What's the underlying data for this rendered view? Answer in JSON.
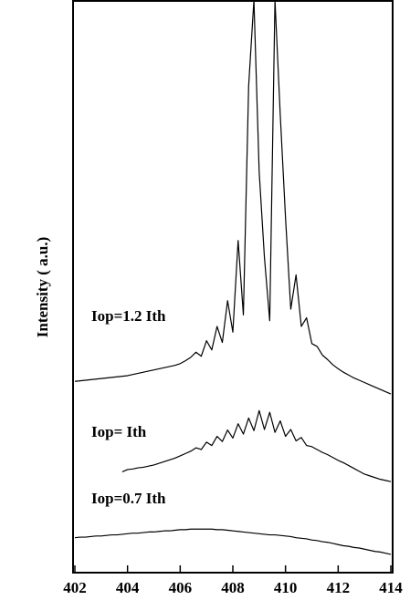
{
  "chart_data": {
    "type": "line",
    "ylabel": "Intensity ( a.u.)",
    "x": [
      402.0,
      402.2,
      402.4,
      402.6,
      402.8,
      403.0,
      403.2,
      403.4,
      403.6,
      403.8,
      404.0,
      404.2,
      404.4,
      404.6,
      404.8,
      405.0,
      405.2,
      405.4,
      405.6,
      405.8,
      406.0,
      406.2,
      406.4,
      406.6,
      406.8,
      407.0,
      407.2,
      407.4,
      407.6,
      407.8,
      408.0,
      408.2,
      408.4,
      408.6,
      408.8,
      409.0,
      409.2,
      409.4,
      409.6,
      409.8,
      410.0,
      410.2,
      410.4,
      410.6,
      410.8,
      411.0,
      411.2,
      411.4,
      411.6,
      411.8,
      412.0,
      412.2,
      412.4,
      412.6,
      412.8,
      413.0,
      413.2,
      413.4,
      413.6,
      413.8,
      414.0
    ],
    "series": [
      {
        "name": "Iop=1.2 Ith",
        "color": "#000000",
        "values": [
          33.4,
          33.5,
          33.6,
          33.7,
          33.8,
          33.9,
          34.0,
          34.1,
          34.2,
          34.3,
          34.4,
          34.6,
          34.8,
          35.0,
          35.2,
          35.4,
          35.6,
          35.8,
          36.0,
          36.2,
          36.5,
          37.0,
          37.6,
          38.5,
          37.8,
          40.5,
          38.9,
          43.0,
          40.2,
          47.5,
          42.0,
          58.0,
          45.0,
          85.0,
          100,
          70.0,
          55.0,
          44.0,
          100,
          80.0,
          62.0,
          46.0,
          52.0,
          43.0,
          44.5,
          40.0,
          39.5,
          38.0,
          37.2,
          36.3,
          35.6,
          35.0,
          34.5,
          34.0,
          33.6,
          33.2,
          32.8,
          32.4,
          32.0,
          31.6,
          31.2
        ]
      },
      {
        "name": "Iop= Ith",
        "color": "#000000",
        "values": [
          null,
          null,
          null,
          null,
          null,
          null,
          null,
          null,
          null,
          17.6,
          18.0,
          18.1,
          18.3,
          18.4,
          18.6,
          18.8,
          19.1,
          19.4,
          19.7,
          20.0,
          20.4,
          20.8,
          21.2,
          21.8,
          21.5,
          22.8,
          22.2,
          23.8,
          22.9,
          24.9,
          23.5,
          26.0,
          24.2,
          27.0,
          24.8,
          28.3,
          25.0,
          28.0,
          24.5,
          26.5,
          23.8,
          25.0,
          23.0,
          23.6,
          22.2,
          22.0,
          21.5,
          21.0,
          20.6,
          20.1,
          19.6,
          19.2,
          18.7,
          18.2,
          17.7,
          17.2,
          16.9,
          16.6,
          16.3,
          16.1,
          15.9
        ]
      },
      {
        "name": "Iop=0.7 Ith",
        "color": "#000000",
        "values": [
          6.1,
          6.2,
          6.2,
          6.3,
          6.4,
          6.4,
          6.5,
          6.6,
          6.6,
          6.7,
          6.8,
          6.9,
          6.9,
          7.0,
          7.1,
          7.1,
          7.2,
          7.3,
          7.3,
          7.4,
          7.5,
          7.5,
          7.6,
          7.6,
          7.6,
          7.6,
          7.6,
          7.5,
          7.5,
          7.4,
          7.3,
          7.2,
          7.1,
          7.0,
          6.9,
          6.8,
          6.7,
          6.6,
          6.6,
          6.5,
          6.4,
          6.3,
          6.1,
          6.0,
          5.9,
          5.7,
          5.6,
          5.4,
          5.3,
          5.1,
          4.9,
          4.7,
          4.6,
          4.4,
          4.3,
          4.1,
          3.9,
          3.7,
          3.6,
          3.4,
          3.2
        ]
      }
    ],
    "xlim": [
      402,
      414
    ],
    "xticks": [
      402,
      404,
      406,
      408,
      410,
      412,
      414
    ],
    "ylim": [
      0,
      100
    ]
  }
}
